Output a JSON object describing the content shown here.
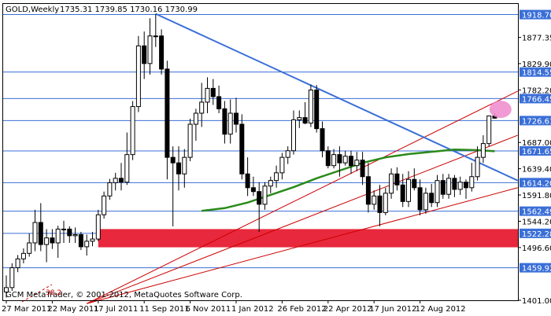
{
  "header": {
    "symbol": "GOLD,Weekly",
    "ohlc": "1735.31 1739.85 1730.16 1730.99"
  },
  "copyright": "GCM MetaTrader, © 2001-2012, MetaQuotes Software Corp.",
  "chart_data": {
    "type": "candlestick",
    "title": "",
    "xlabel": "",
    "ylabel": "",
    "ylim": [
      1401.0,
      1938.0
    ],
    "x_tick_labels": [
      "27 Mar 2011",
      "22 May 2011",
      "17 Jul 2011",
      "11 Sep 2011",
      "6 Nov 2011",
      "1 Jan 2012",
      "26 Feb 2012",
      "22 Apr 2012",
      "17 Jun 2012",
      "12 Aug 2012"
    ],
    "y_tick_labels": [
      "1877.35",
      "1829.90",
      "1782.20",
      "1687.00",
      "1639.40",
      "1591.80",
      "1544.20",
      "1496.60",
      "1401.00"
    ],
    "highlighted_levels": [
      1918.7,
      1814.55,
      1766.45,
      1726.61,
      1671.65,
      1614.2,
      1562.49,
      1522.28,
      1459.92
    ],
    "horizontal_levels": [
      1918.7,
      1814.55,
      1766.45,
      1726.61,
      1671.65,
      1614.2,
      1562.49,
      1522.28,
      1459.92
    ],
    "candles": [
      {
        "o": 1416,
        "h": 1446,
        "l": 1406,
        "c": 1424
      },
      {
        "o": 1424,
        "h": 1468,
        "l": 1418,
        "c": 1460
      },
      {
        "o": 1460,
        "h": 1483,
        "l": 1452,
        "c": 1476
      },
      {
        "o": 1476,
        "h": 1495,
        "l": 1468,
        "c": 1486
      },
      {
        "o": 1486,
        "h": 1522,
        "l": 1480,
        "c": 1505
      },
      {
        "o": 1505,
        "h": 1565,
        "l": 1490,
        "c": 1542
      },
      {
        "o": 1542,
        "h": 1577,
        "l": 1490,
        "c": 1502
      },
      {
        "o": 1502,
        "h": 1530,
        "l": 1470,
        "c": 1514
      },
      {
        "o": 1514,
        "h": 1530,
        "l": 1494,
        "c": 1505
      },
      {
        "o": 1505,
        "h": 1536,
        "l": 1478,
        "c": 1530
      },
      {
        "o": 1530,
        "h": 1545,
        "l": 1505,
        "c": 1530
      },
      {
        "o": 1530,
        "h": 1535,
        "l": 1505,
        "c": 1518
      },
      {
        "o": 1518,
        "h": 1533,
        "l": 1505,
        "c": 1520
      },
      {
        "o": 1520,
        "h": 1525,
        "l": 1492,
        "c": 1498
      },
      {
        "o": 1498,
        "h": 1520,
        "l": 1482,
        "c": 1508
      },
      {
        "o": 1508,
        "h": 1525,
        "l": 1499,
        "c": 1512
      },
      {
        "o": 1512,
        "h": 1565,
        "l": 1508,
        "c": 1556
      },
      {
        "o": 1556,
        "h": 1598,
        "l": 1549,
        "c": 1590
      },
      {
        "o": 1590,
        "h": 1621,
        "l": 1583,
        "c": 1614
      },
      {
        "o": 1614,
        "h": 1632,
        "l": 1600,
        "c": 1622
      },
      {
        "o": 1622,
        "h": 1650,
        "l": 1600,
        "c": 1615
      },
      {
        "o": 1615,
        "h": 1705,
        "l": 1610,
        "c": 1665
      },
      {
        "o": 1665,
        "h": 1762,
        "l": 1655,
        "c": 1752
      },
      {
        "o": 1752,
        "h": 1880,
        "l": 1742,
        "c": 1862
      },
      {
        "o": 1862,
        "h": 1888,
        "l": 1802,
        "c": 1830
      },
      {
        "o": 1830,
        "h": 1912,
        "l": 1810,
        "c": 1880
      },
      {
        "o": 1880,
        "h": 1920,
        "l": 1860,
        "c": 1880
      },
      {
        "o": 1880,
        "h": 1892,
        "l": 1810,
        "c": 1820
      },
      {
        "o": 1820,
        "h": 1835,
        "l": 1620,
        "c": 1660
      },
      {
        "o": 1660,
        "h": 1680,
        "l": 1535,
        "c": 1650
      },
      {
        "o": 1650,
        "h": 1680,
        "l": 1600,
        "c": 1630
      },
      {
        "o": 1630,
        "h": 1675,
        "l": 1605,
        "c": 1660
      },
      {
        "o": 1660,
        "h": 1730,
        "l": 1653,
        "c": 1720
      },
      {
        "o": 1720,
        "h": 1748,
        "l": 1690,
        "c": 1740
      },
      {
        "o": 1740,
        "h": 1795,
        "l": 1715,
        "c": 1760
      },
      {
        "o": 1760,
        "h": 1805,
        "l": 1740,
        "c": 1785
      },
      {
        "o": 1785,
        "h": 1802,
        "l": 1755,
        "c": 1770
      },
      {
        "o": 1770,
        "h": 1790,
        "l": 1740,
        "c": 1748
      },
      {
        "o": 1748,
        "h": 1762,
        "l": 1685,
        "c": 1702
      },
      {
        "o": 1702,
        "h": 1765,
        "l": 1685,
        "c": 1740
      },
      {
        "o": 1740,
        "h": 1768,
        "l": 1705,
        "c": 1720
      },
      {
        "o": 1720,
        "h": 1738,
        "l": 1620,
        "c": 1630
      },
      {
        "o": 1630,
        "h": 1660,
        "l": 1590,
        "c": 1605
      },
      {
        "o": 1605,
        "h": 1625,
        "l": 1590,
        "c": 1598
      },
      {
        "o": 1598,
        "h": 1615,
        "l": 1525,
        "c": 1575
      },
      {
        "o": 1575,
        "h": 1615,
        "l": 1565,
        "c": 1608
      },
      {
        "o": 1608,
        "h": 1625,
        "l": 1595,
        "c": 1618
      },
      {
        "o": 1618,
        "h": 1645,
        "l": 1605,
        "c": 1632
      },
      {
        "o": 1632,
        "h": 1668,
        "l": 1620,
        "c": 1660
      },
      {
        "o": 1660,
        "h": 1680,
        "l": 1648,
        "c": 1672
      },
      {
        "o": 1672,
        "h": 1745,
        "l": 1665,
        "c": 1728
      },
      {
        "o": 1728,
        "h": 1745,
        "l": 1713,
        "c": 1732
      },
      {
        "o": 1732,
        "h": 1760,
        "l": 1720,
        "c": 1722
      },
      {
        "o": 1722,
        "h": 1792,
        "l": 1715,
        "c": 1782
      },
      {
        "o": 1782,
        "h": 1791,
        "l": 1705,
        "c": 1712
      },
      {
        "o": 1712,
        "h": 1725,
        "l": 1660,
        "c": 1672
      },
      {
        "o": 1672,
        "h": 1680,
        "l": 1640,
        "c": 1645
      },
      {
        "o": 1645,
        "h": 1675,
        "l": 1640,
        "c": 1665
      },
      {
        "o": 1665,
        "h": 1680,
        "l": 1625,
        "c": 1650
      },
      {
        "o": 1650,
        "h": 1672,
        "l": 1645,
        "c": 1662
      },
      {
        "o": 1662,
        "h": 1672,
        "l": 1630,
        "c": 1645
      },
      {
        "o": 1645,
        "h": 1670,
        "l": 1635,
        "c": 1655
      },
      {
        "o": 1655,
        "h": 1670,
        "l": 1610,
        "c": 1625
      },
      {
        "o": 1625,
        "h": 1650,
        "l": 1560,
        "c": 1575
      },
      {
        "o": 1575,
        "h": 1600,
        "l": 1565,
        "c": 1590
      },
      {
        "o": 1590,
        "h": 1610,
        "l": 1535,
        "c": 1560
      },
      {
        "o": 1560,
        "h": 1605,
        "l": 1555,
        "c": 1595
      },
      {
        "o": 1595,
        "h": 1640,
        "l": 1585,
        "c": 1630
      },
      {
        "o": 1630,
        "h": 1642,
        "l": 1600,
        "c": 1610
      },
      {
        "o": 1610,
        "h": 1630,
        "l": 1570,
        "c": 1580
      },
      {
        "o": 1580,
        "h": 1635,
        "l": 1570,
        "c": 1620
      },
      {
        "o": 1620,
        "h": 1640,
        "l": 1600,
        "c": 1605
      },
      {
        "o": 1605,
        "h": 1620,
        "l": 1555,
        "c": 1565
      },
      {
        "o": 1565,
        "h": 1605,
        "l": 1558,
        "c": 1595
      },
      {
        "o": 1595,
        "h": 1612,
        "l": 1570,
        "c": 1578
      },
      {
        "o": 1578,
        "h": 1628,
        "l": 1570,
        "c": 1618
      },
      {
        "o": 1618,
        "h": 1630,
        "l": 1585,
        "c": 1593
      },
      {
        "o": 1593,
        "h": 1630,
        "l": 1585,
        "c": 1622
      },
      {
        "o": 1622,
        "h": 1628,
        "l": 1588,
        "c": 1602
      },
      {
        "o": 1602,
        "h": 1625,
        "l": 1592,
        "c": 1615
      },
      {
        "o": 1615,
        "h": 1620,
        "l": 1585,
        "c": 1605
      },
      {
        "o": 1605,
        "h": 1650,
        "l": 1598,
        "c": 1625
      },
      {
        "o": 1625,
        "h": 1680,
        "l": 1618,
        "c": 1660
      },
      {
        "o": 1660,
        "h": 1700,
        "l": 1650,
        "c": 1685
      },
      {
        "o": 1685,
        "h": 1735,
        "l": 1680,
        "c": 1735
      },
      {
        "o": 1735,
        "h": 1740,
        "l": 1730,
        "c": 1731
      }
    ],
    "moving_average": [
      {
        "i": 34,
        "y": 1563
      },
      {
        "i": 38,
        "y": 1568
      },
      {
        "i": 42,
        "y": 1578
      },
      {
        "i": 46,
        "y": 1592
      },
      {
        "i": 50,
        "y": 1606
      },
      {
        "i": 54,
        "y": 1622
      },
      {
        "i": 58,
        "y": 1636
      },
      {
        "i": 62,
        "y": 1650
      },
      {
        "i": 66,
        "y": 1660
      },
      {
        "i": 70,
        "y": 1666
      },
      {
        "i": 74,
        "y": 1670
      },
      {
        "i": 78,
        "y": 1674
      },
      {
        "i": 82,
        "y": 1673
      },
      {
        "i": 85,
        "y": 1671
      }
    ],
    "channel_lines": [
      {
        "color": "#cc0000",
        "from": {
          "i": 14,
          "y": 1395
        },
        "to": {
          "i": 89,
          "y": 1780
        }
      },
      {
        "color": "#cc0000",
        "from": {
          "i": 14,
          "y": 1395
        },
        "to": {
          "i": 89,
          "y": 1700
        }
      },
      {
        "color": "#cc0000",
        "from": {
          "i": 14,
          "y": 1395
        },
        "to": {
          "i": 89,
          "y": 1605
        }
      }
    ],
    "trend_line": {
      "color": "#3a6fd8",
      "from": {
        "i": 26,
        "y": 1920
      },
      "to": {
        "i": 89,
        "y": 1618
      }
    },
    "demand_zone": {
      "from_i": 16,
      "to_i": 89,
      "y_top": 1530,
      "y_bottom": 1497,
      "color": "#e8283c"
    },
    "highlight_marker": {
      "i": 86,
      "y": 1747,
      "color": "#ee88cc"
    },
    "annotation": {
      "label": "38.2"
    },
    "colors": {
      "bull": "#ffffff",
      "bear": "#000000",
      "wick": "#000000",
      "level": "#3a6fd8",
      "ma": "#2a8a1a",
      "axis": "#000000"
    }
  }
}
